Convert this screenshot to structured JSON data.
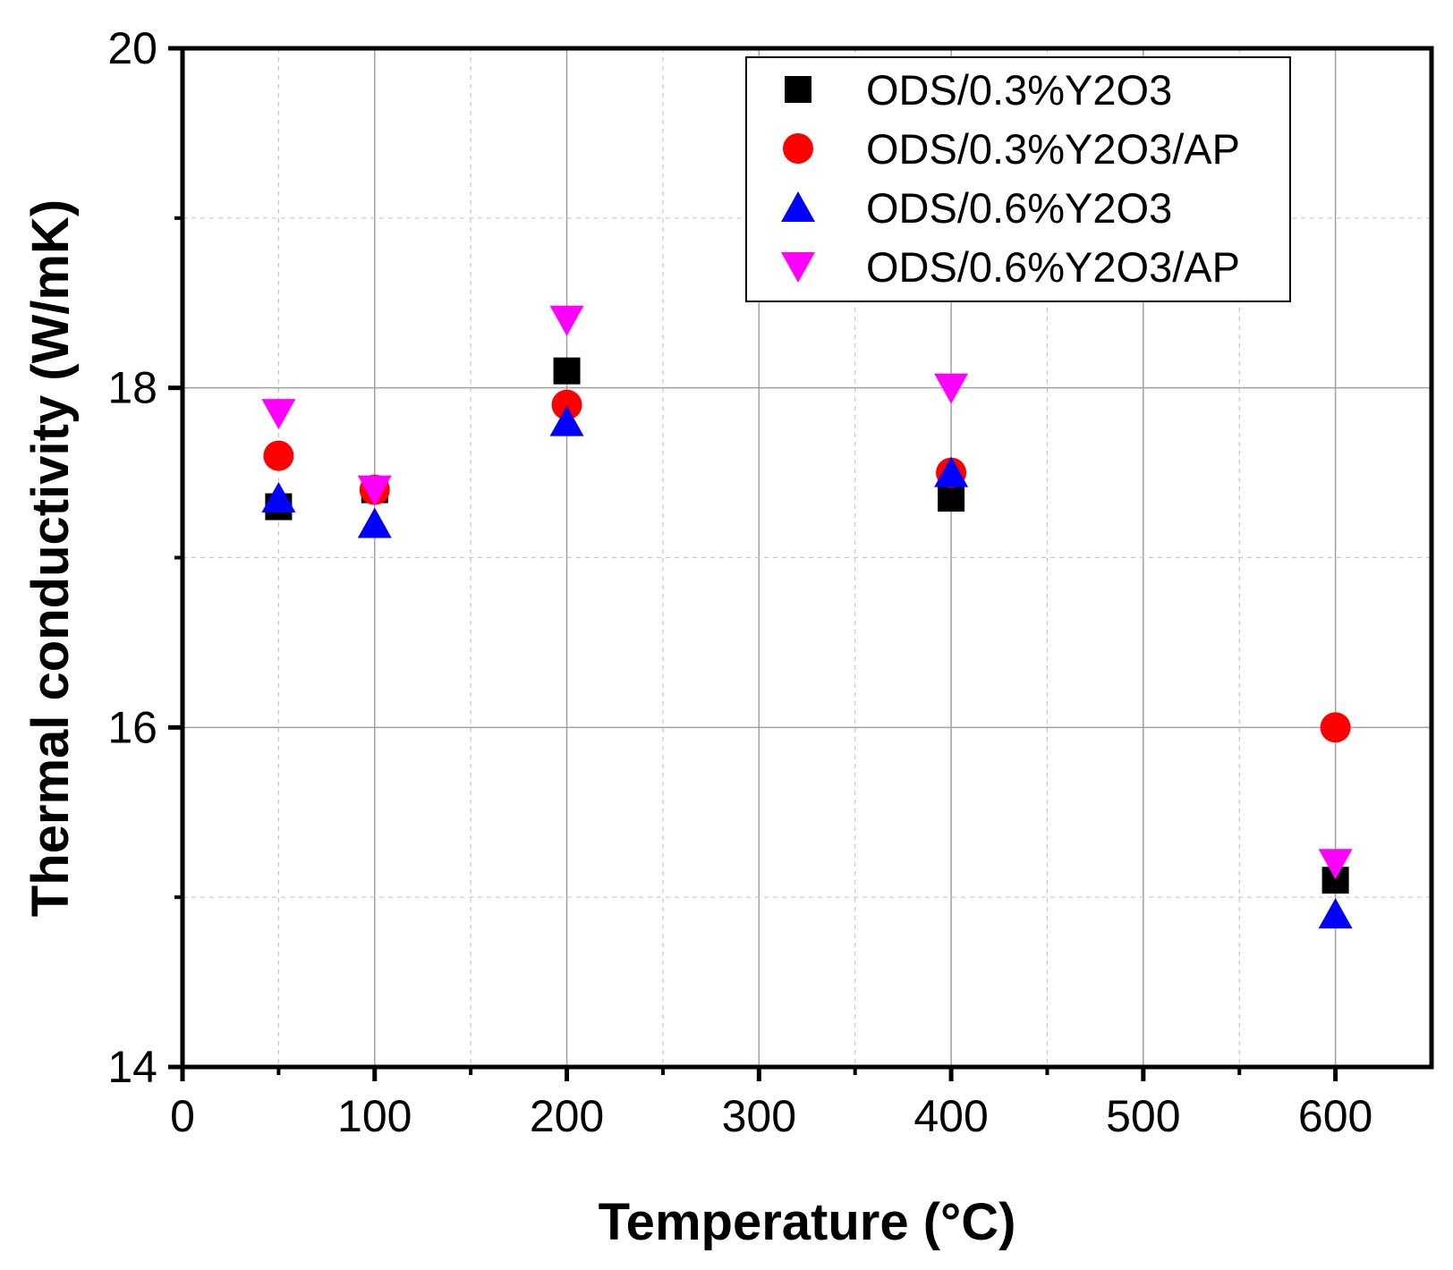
{
  "chart_data": {
    "type": "scatter",
    "title": "",
    "xlabel": "Temperature (°C)",
    "ylabel": "Thermal conductivity (W/mK)",
    "xlim": [
      0,
      650
    ],
    "ylim": [
      14,
      20
    ],
    "x_ticks": [
      0,
      100,
      200,
      300,
      400,
      500,
      600
    ],
    "x_tick_labels": [
      "0",
      "100",
      "200",
      "300",
      "400",
      "500",
      "600"
    ],
    "y_ticks": [
      14,
      16,
      18,
      20
    ],
    "y_tick_labels": [
      "14",
      "16",
      "18",
      "20"
    ],
    "x_minor_ticks": [
      50,
      150,
      250,
      350,
      450,
      550
    ],
    "y_minor_ticks": [
      15,
      17,
      19
    ],
    "grid": true,
    "legend_position": "top-right",
    "series": [
      {
        "name": "ODS/0.3%Y2O3",
        "marker": "square",
        "color": "#000000",
        "x": [
          50,
          100,
          200,
          400,
          600
        ],
        "y": [
          17.3,
          17.4,
          18.1,
          17.35,
          15.1
        ]
      },
      {
        "name": "ODS/0.3%Y2O3/AP",
        "marker": "circle",
        "color": "#ff0000",
        "x": [
          50,
          100,
          200,
          400,
          600
        ],
        "y": [
          17.6,
          17.4,
          17.9,
          17.5,
          16.0
        ]
      },
      {
        "name": "ODS/0.6%Y2O3",
        "marker": "triangle-up",
        "color": "#0000ff",
        "x": [
          50,
          100,
          200,
          400,
          600
        ],
        "y": [
          17.35,
          17.2,
          17.8,
          17.5,
          14.9
        ]
      },
      {
        "name": "ODS/0.6%Y2O3/AP",
        "marker": "triangle-down",
        "color": "#ff00ff",
        "x": [
          50,
          100,
          200,
          400,
          600
        ],
        "y": [
          17.85,
          17.4,
          18.4,
          18.0,
          15.2
        ]
      }
    ]
  }
}
